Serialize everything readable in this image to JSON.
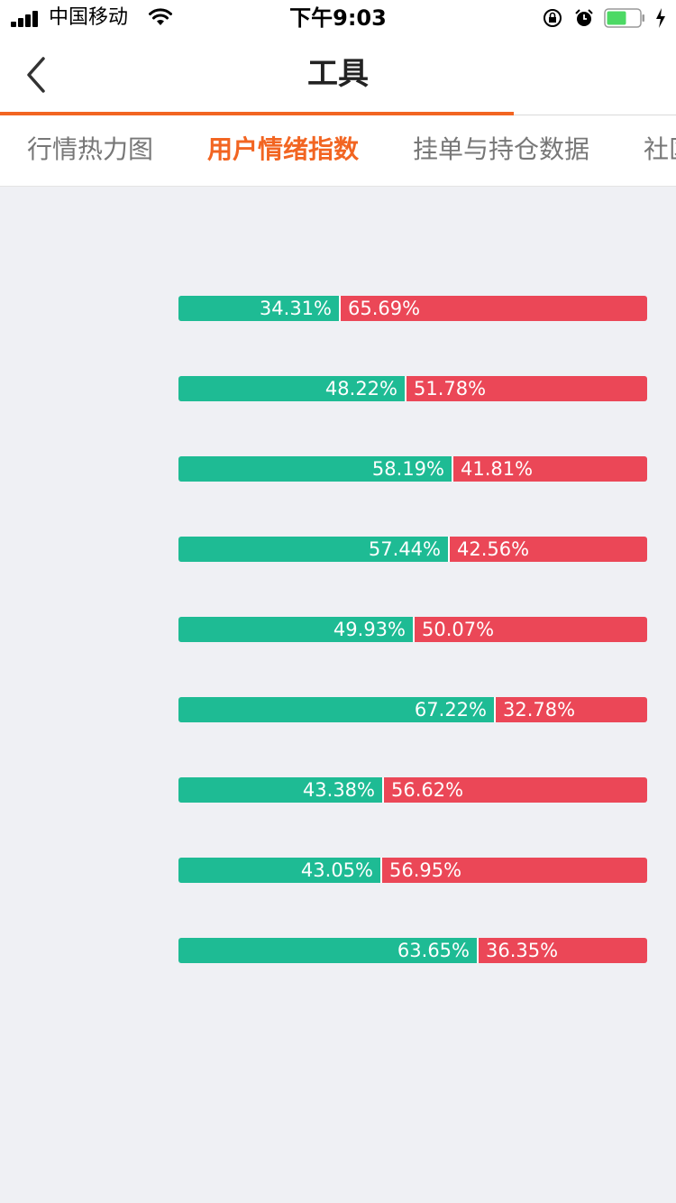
{
  "status_bar": {
    "carrier": "中国移动",
    "time": "下午9:03",
    "battery_level": 0.6
  },
  "nav": {
    "title": "工具",
    "progress": 0.76
  },
  "tabs": [
    {
      "label": "行情热力图",
      "active": false
    },
    {
      "label": "用户情绪指数",
      "active": true
    },
    {
      "label": "挂单与持仓数据",
      "active": false
    },
    {
      "label": "社区",
      "active": false
    }
  ],
  "sentiment_rows": [
    {
      "long": 34.31,
      "short": 65.69,
      "long_label": "34.31%",
      "short_label": "65.69%"
    },
    {
      "long": 48.22,
      "short": 51.78,
      "long_label": "48.22%",
      "short_label": "51.78%"
    },
    {
      "long": 58.19,
      "short": 41.81,
      "long_label": "58.19%",
      "short_label": "41.81%"
    },
    {
      "long": 57.44,
      "short": 42.56,
      "long_label": "57.44%",
      "short_label": "42.56%"
    },
    {
      "long": 49.93,
      "short": 50.07,
      "long_label": "49.93%",
      "short_label": "50.07%"
    },
    {
      "long": 67.22,
      "short": 32.78,
      "long_label": "67.22%",
      "short_label": "32.78%"
    },
    {
      "long": 43.38,
      "short": 56.62,
      "long_label": "43.38%",
      "short_label": "56.62%"
    },
    {
      "long": 43.05,
      "short": 56.95,
      "long_label": "43.05%",
      "short_label": "56.95%"
    },
    {
      "long": 63.65,
      "short": 36.35,
      "long_label": "63.65%",
      "short_label": "36.35%"
    }
  ],
  "colors": {
    "accent": "#f26522",
    "long": "#1ebb94",
    "short": "#eb4757",
    "background": "#eff0f4"
  },
  "icons": [
    "signal-icon",
    "wifi-icon",
    "orientation-lock-icon",
    "alarm-icon",
    "battery-icon",
    "charging-icon",
    "back-chevron-icon"
  ]
}
